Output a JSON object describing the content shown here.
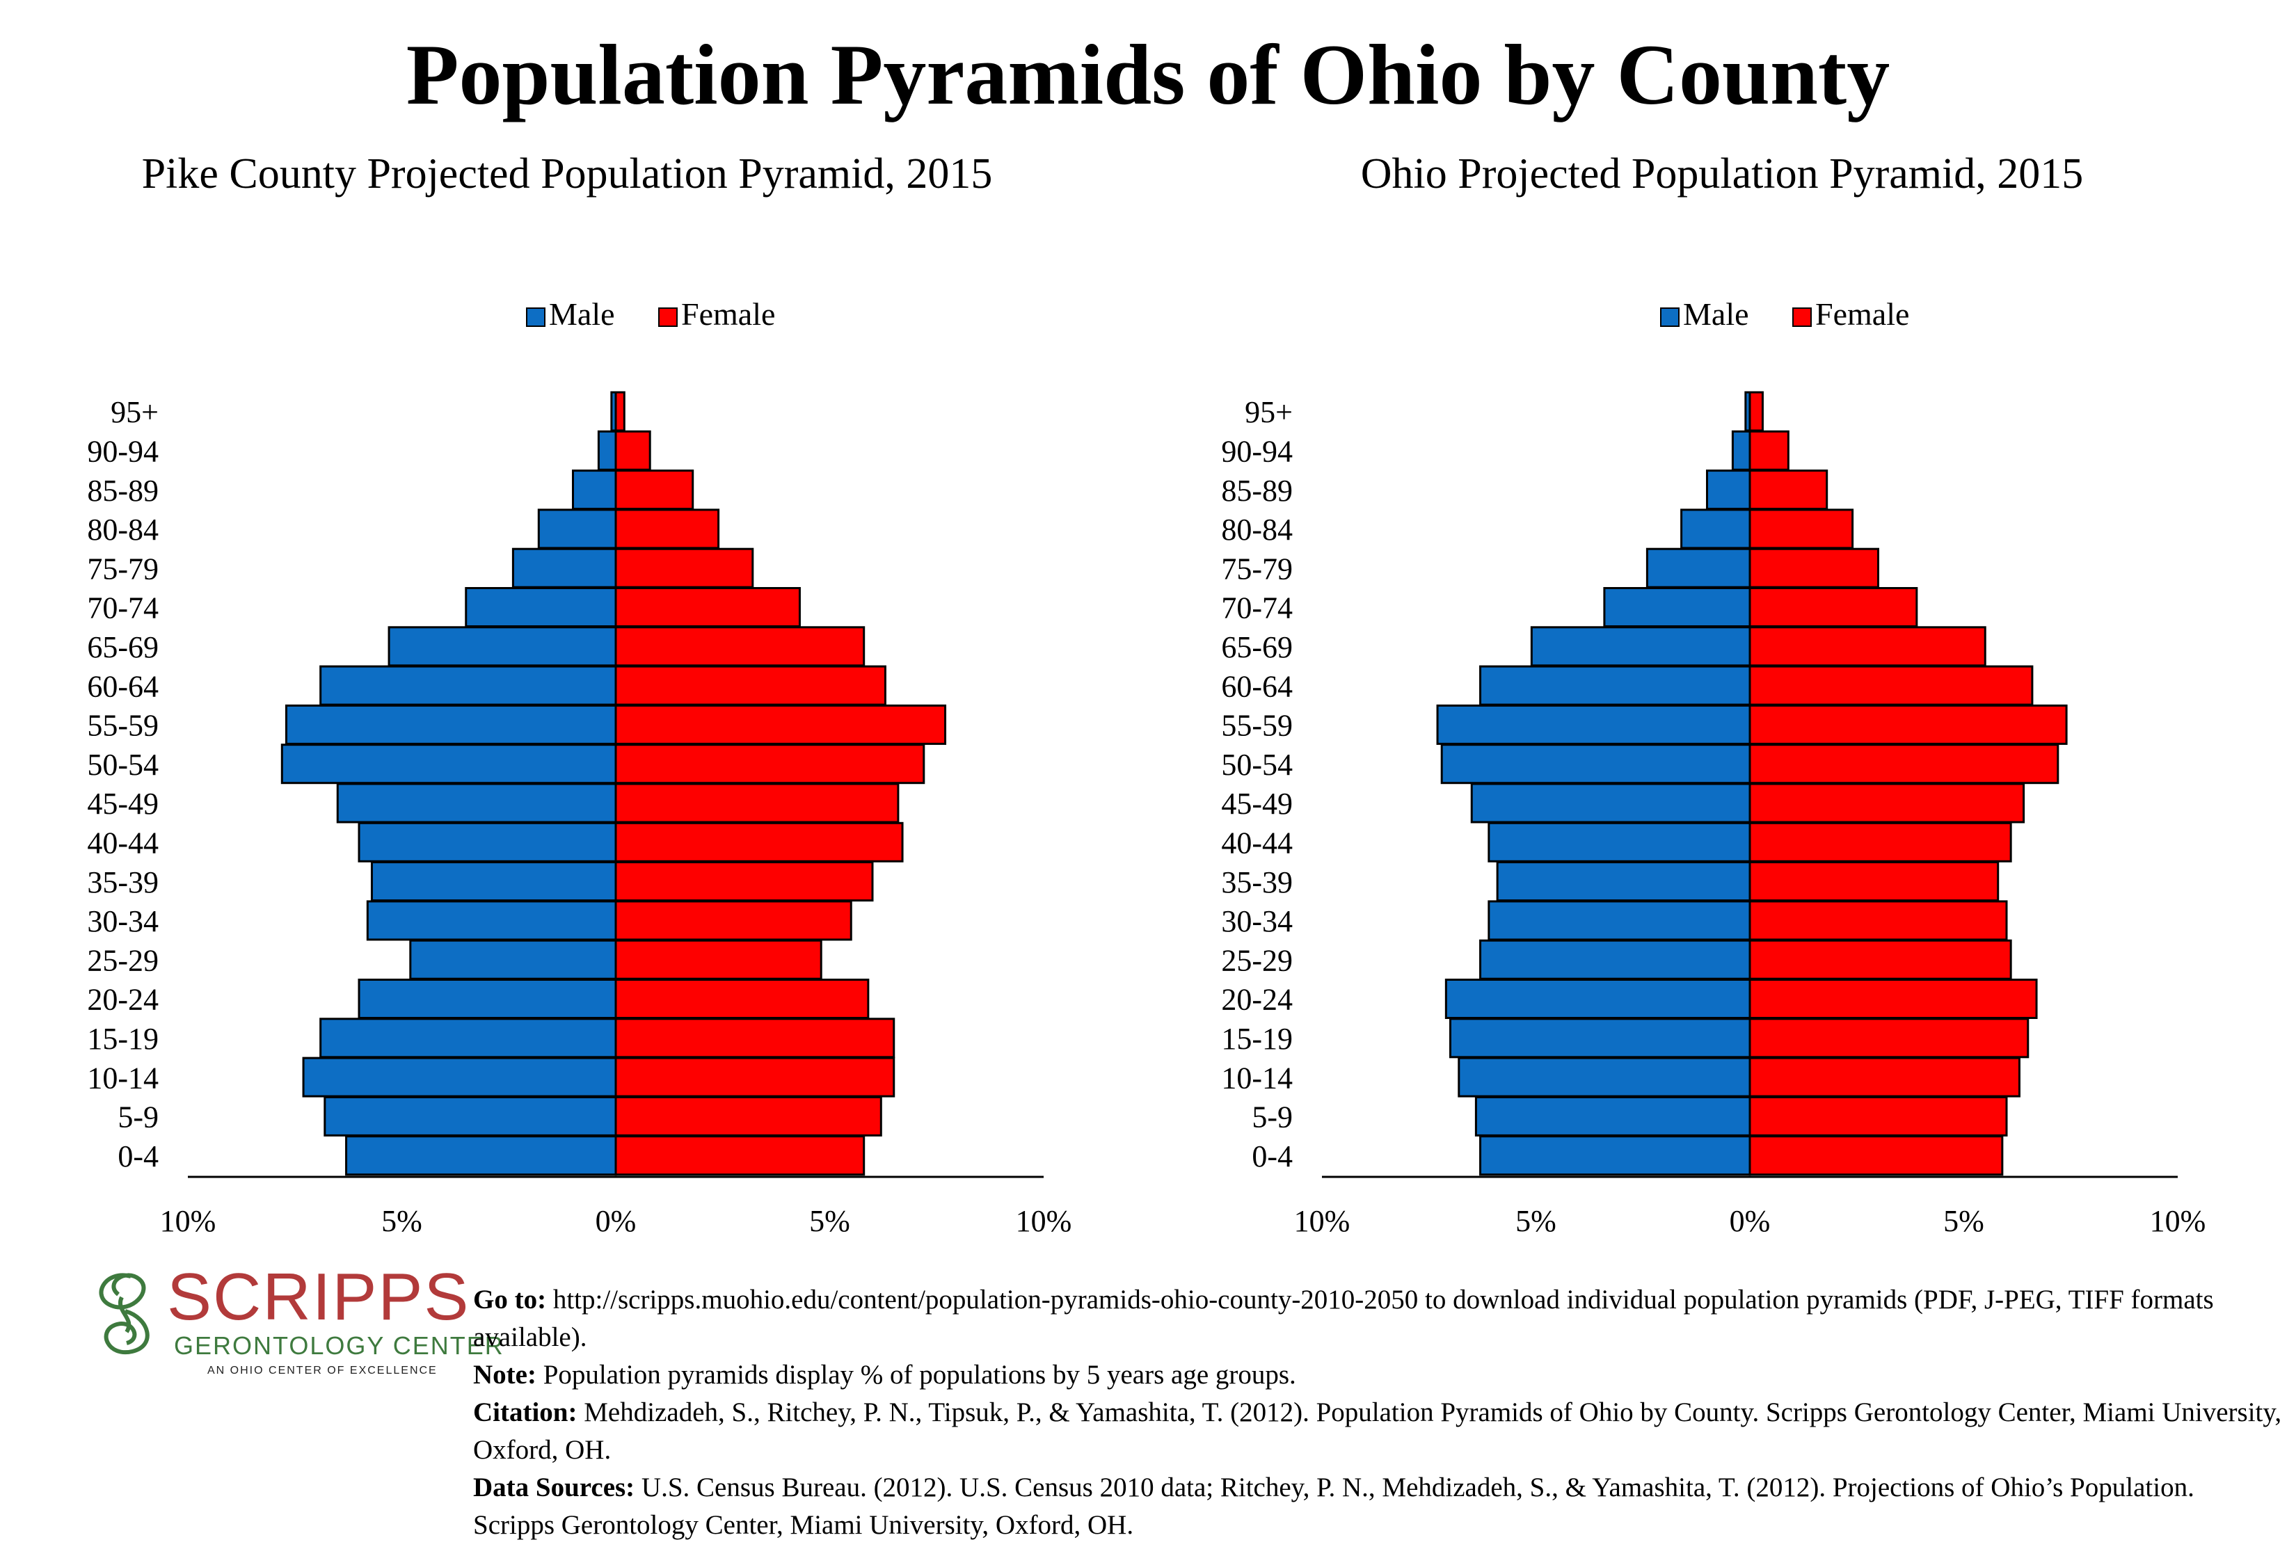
{
  "main_title": "Population Pyramids of Ohio by County",
  "colors": {
    "male": "#0d6ec4",
    "female": "#fe0000",
    "outline": "#000000"
  },
  "chart_data": [
    {
      "type": "bar",
      "orientation": "horizontal-pyramid",
      "title": "Pike County Projected Population Pyramid, 2015",
      "legend_position": "top",
      "categories": [
        "0-4",
        "5-9",
        "10-14",
        "15-19",
        "20-24",
        "25-29",
        "30-34",
        "35-39",
        "40-44",
        "45-49",
        "50-54",
        "55-59",
        "60-64",
        "65-69",
        "70-74",
        "75-79",
        "80-84",
        "85-89",
        "90-94",
        "95+"
      ],
      "series": [
        {
          "name": "Male",
          "values": [
            6.3,
            6.8,
            7.3,
            6.9,
            6.0,
            4.8,
            5.8,
            5.7,
            6.0,
            6.5,
            7.8,
            7.7,
            6.9,
            5.3,
            3.5,
            2.4,
            1.8,
            1.0,
            0.4,
            0.1
          ]
        },
        {
          "name": "Female",
          "values": [
            5.8,
            6.2,
            6.5,
            6.5,
            5.9,
            4.8,
            5.5,
            6.0,
            6.7,
            6.6,
            7.2,
            7.7,
            6.3,
            5.8,
            4.3,
            3.2,
            2.4,
            1.8,
            0.8,
            0.2
          ]
        }
      ],
      "xlim": [
        -10,
        10
      ],
      "xticks": [
        "10%",
        "5%",
        "0%",
        "5%",
        "10%"
      ]
    },
    {
      "type": "bar",
      "orientation": "horizontal-pyramid",
      "title": "Ohio Projected Population Pyramid, 2015",
      "legend_position": "top",
      "categories": [
        "0-4",
        "5-9",
        "10-14",
        "15-19",
        "20-24",
        "25-29",
        "30-34",
        "35-39",
        "40-44",
        "45-49",
        "50-54",
        "55-59",
        "60-64",
        "65-69",
        "70-74",
        "75-79",
        "80-84",
        "85-89",
        "90-94",
        "95+"
      ],
      "series": [
        {
          "name": "Male",
          "values": [
            6.3,
            6.4,
            6.8,
            7.0,
            7.1,
            6.3,
            6.1,
            5.9,
            6.1,
            6.5,
            7.2,
            7.3,
            6.3,
            5.1,
            3.4,
            2.4,
            1.6,
            1.0,
            0.4,
            0.1
          ]
        },
        {
          "name": "Female",
          "values": [
            5.9,
            6.0,
            6.3,
            6.5,
            6.7,
            6.1,
            6.0,
            5.8,
            6.1,
            6.4,
            7.2,
            7.4,
            6.6,
            5.5,
            3.9,
            3.0,
            2.4,
            1.8,
            0.9,
            0.3
          ]
        }
      ],
      "xlim": [
        -10,
        10
      ],
      "xticks": [
        "10%",
        "5%",
        "0%",
        "5%",
        "10%"
      ]
    }
  ],
  "logo": {
    "name": "SCRIPPS",
    "subtitle": "GERONTOLOGY CENTER",
    "tagline": "AN OHIO CENTER OF EXCELLENCE",
    "colors": {
      "word": "#b23a3a",
      "sub": "#3e7a3e"
    }
  },
  "notes": {
    "goto_label": "Go to:",
    "goto_text": " http://scripps.muohio.edu/content/population-pyramids-ohio-county-2010-2050 to download individual population pyramids (PDF, J-PEG, TIFF formats available).",
    "note_label": "Note:",
    "note_text": " Population pyramids display % of populations by 5 years age groups.",
    "citation_label": "Citation:",
    "citation_text": " Mehdizadeh, S., Ritchey, P. N., Tipsuk, P., & Yamashita, T. (2012). Population Pyramids of Ohio by County. Scripps Gerontology Center, Miami University, Oxford, OH.",
    "sources_label": "Data Sources:",
    "sources_text": " U.S. Census Bureau. (2012). U.S. Census 2010 data; Ritchey, P. N., Mehdizadeh, S., & Yamashita, T. (2012). Projections of Ohio’s Population. Scripps Gerontology Center, Miami University, Oxford, OH."
  }
}
